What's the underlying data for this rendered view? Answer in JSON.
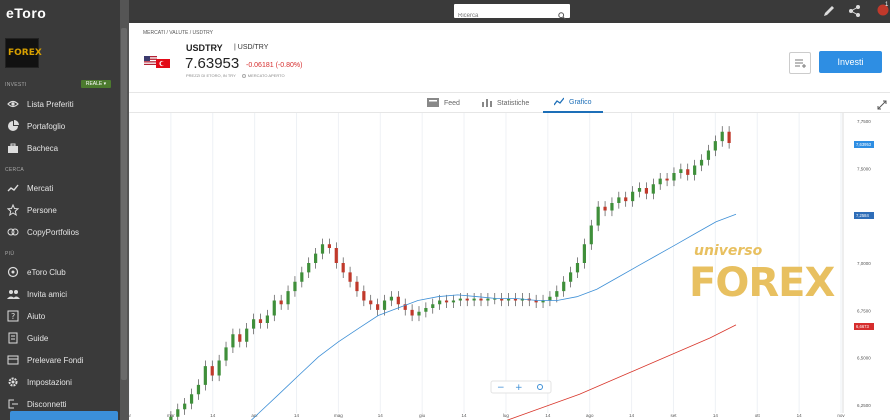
{
  "app": {
    "logo": "eToro"
  },
  "sidebar": {
    "avatar_text": "FOREX",
    "sections": {
      "invest": "INVESTI",
      "search": "CERCA",
      "more": "PIÙ"
    },
    "account_mode": "REALE ▾",
    "items": [
      {
        "label": "Lista Preferiti",
        "icon": "eye-icon"
      },
      {
        "label": "Portafoglio",
        "icon": "pie-chart-icon"
      },
      {
        "label": "Bacheca",
        "icon": "briefcase-icon"
      },
      {
        "label": "Mercati",
        "icon": "trend-icon"
      },
      {
        "label": "Persone",
        "icon": "star-icon"
      },
      {
        "label": "CopyPortfolios",
        "icon": "copy-icon"
      },
      {
        "label": "eToro Club",
        "icon": "club-icon"
      },
      {
        "label": "Invita amici",
        "icon": "invite-icon"
      },
      {
        "label": "Aiuto",
        "icon": "help-icon"
      },
      {
        "label": "Guide",
        "icon": "guide-icon"
      },
      {
        "label": "Prelevare Fondi",
        "icon": "withdraw-icon"
      },
      {
        "label": "Impostazioni",
        "icon": "gear-icon"
      },
      {
        "label": "Disconnetti",
        "icon": "logout-icon"
      }
    ]
  },
  "topbar": {
    "search_placeholder": "Ricerca",
    "notification_count": "1"
  },
  "header": {
    "breadcrumb": "MERCATI / VALUTE / USDTRY",
    "symbol": "USDTRY",
    "symbol_sub": "USD/TRY",
    "price": "7.63953",
    "change": "-0.06181 (-0.80%)",
    "price_note": "PREZZI DI ETORO, IN TRY",
    "market_status": "MERCATO APERTO",
    "invest_label": "Investi"
  },
  "tabs": [
    {
      "label": "Feed",
      "icon": "feed-icon"
    },
    {
      "label": "Statistiche",
      "icon": "stats-icon"
    },
    {
      "label": "Grafico",
      "icon": "chart-icon",
      "active": true
    }
  ],
  "chart_data": {
    "type": "candlestick",
    "x_ticks": [
      "ar",
      "mar",
      "14",
      "apr",
      "14",
      "mag",
      "14",
      "giu",
      "14",
      "lug",
      "14",
      "ago",
      "14",
      "set",
      "14",
      "ott",
      "14",
      "nov"
    ],
    "y_ticks": [
      "7,7500",
      "7,5000",
      "7,2500",
      "7,0000",
      "6,7500",
      "6,5000",
      "6,2500"
    ],
    "price_tags": [
      {
        "value": "7,63953",
        "color": "#2e8ee3"
      },
      {
        "value": "7,2584",
        "color": "#2e6db8"
      },
      {
        "value": "6,6673",
        "color": "#d62d2d"
      }
    ],
    "watermark": [
      "universo",
      "FOREX"
    ],
    "ylim": [
      6.2,
      7.8
    ],
    "candles_close": [
      6.1,
      6.18,
      6.22,
      6.25,
      6.3,
      6.35,
      6.45,
      6.4,
      6.48,
      6.55,
      6.62,
      6.58,
      6.65,
      6.7,
      6.68,
      6.72,
      6.8,
      6.78,
      6.85,
      6.9,
      6.95,
      7.0,
      7.05,
      7.1,
      7.08,
      7.0,
      6.95,
      6.9,
      6.85,
      6.8,
      6.78,
      6.75,
      6.8,
      6.82,
      6.78,
      6.75,
      6.72,
      6.74,
      6.76,
      6.78,
      6.8,
      6.79,
      6.8,
      6.81,
      6.8,
      6.81,
      6.8,
      6.81,
      6.81,
      6.8,
      6.81,
      6.8,
      6.81,
      6.8,
      6.79,
      6.8,
      6.82,
      6.85,
      6.9,
      6.95,
      7.0,
      7.1,
      7.2,
      7.3,
      7.28,
      7.32,
      7.35,
      7.33,
      7.38,
      7.4,
      7.37,
      7.42,
      7.45,
      7.44,
      7.48,
      7.5,
      7.47,
      7.52,
      7.55,
      7.6,
      7.65,
      7.7,
      7.64
    ],
    "ma_short": [
      6.1,
      6.2,
      6.3,
      6.4,
      6.5,
      6.58,
      6.65,
      6.72,
      6.76,
      6.8,
      6.82,
      6.83,
      6.82,
      6.81,
      6.81,
      6.8,
      6.8,
      6.82,
      6.86,
      6.92,
      6.98,
      7.04,
      7.1,
      7.16,
      7.22,
      7.26
    ],
    "ma_long": [
      6.05,
      6.1,
      6.15,
      6.2,
      6.25,
      6.3,
      6.36,
      6.42,
      6.48,
      6.54,
      6.6,
      6.67
    ]
  }
}
